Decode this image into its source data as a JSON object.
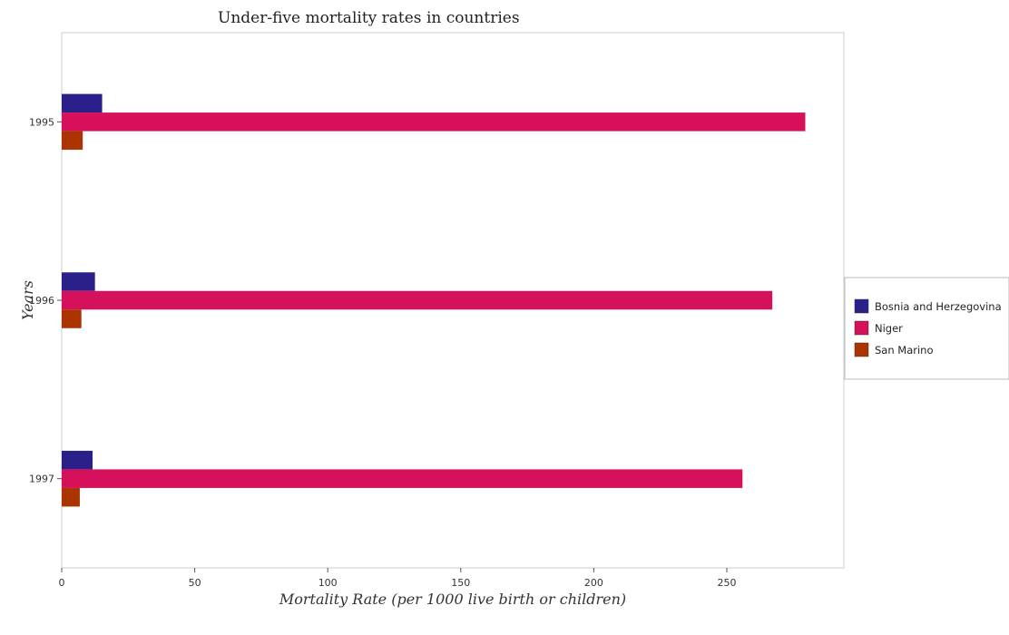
{
  "chart_data": {
    "type": "bar",
    "orientation": "horizontal",
    "title": "Under-five mortality rates in countries",
    "xlabel": "Mortality Rate (per 1000 live birth or children)",
    "ylabel": "Years",
    "categories": [
      "1995",
      "1996",
      "1997"
    ],
    "series": [
      {
        "name": "Bosnia and Herzegovina",
        "color": "#2b1f8a",
        "values": [
          15.2,
          12.5,
          11.6
        ]
      },
      {
        "name": "Niger",
        "color": "#d6105a",
        "values": [
          279.5,
          267.1,
          255.9
        ]
      },
      {
        "name": "San Marino",
        "color": "#ab3400",
        "values": [
          7.9,
          7.4,
          6.8
        ]
      }
    ],
    "xlim": [
      0,
      294
    ],
    "xticks": [
      0,
      50,
      100,
      150,
      200,
      250
    ],
    "grid": false,
    "legend_position": "right"
  }
}
